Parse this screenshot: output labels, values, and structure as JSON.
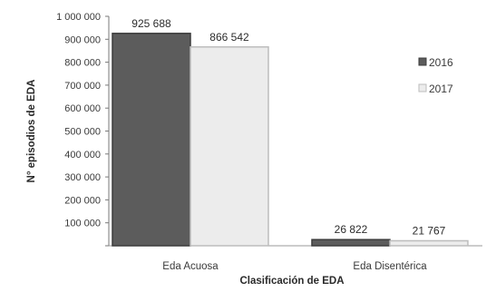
{
  "chart_data": {
    "type": "bar",
    "categories": [
      "Eda Acuosa",
      "Eda Disentérica"
    ],
    "series": [
      {
        "name": "2016",
        "values": [
          925688,
          26822
        ],
        "labels": [
          "925 688",
          "26 822"
        ],
        "color": "#5a5a5a"
      },
      {
        "name": "2017",
        "values": [
          866542,
          21767
        ],
        "labels": [
          "866 542",
          "21 767"
        ],
        "color": "#e8e8e8"
      }
    ],
    "xlabel": "Clasificación de EDA",
    "ylabel": "N° episodios de EDA",
    "ylim": [
      0,
      1000000
    ],
    "yticks": [
      0,
      100000,
      200000,
      300000,
      400000,
      500000,
      600000,
      700000,
      800000,
      900000,
      1000000
    ],
    "ytick_labels": [
      "",
      "100 000",
      "200 000",
      "300 000",
      "400 000",
      "500 000",
      "600 000",
      "700 000",
      "800 000",
      "900 000",
      "1 000 000"
    ],
    "grid": false,
    "legend": "right"
  }
}
